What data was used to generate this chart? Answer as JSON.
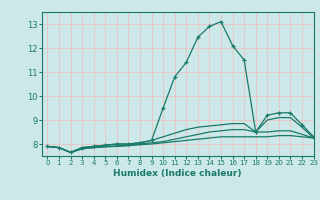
{
  "xlabel": "Humidex (Indice chaleur)",
  "ylabel": "",
  "background_color": "#cce8e8",
  "grid_color": "#e8c8c8",
  "line_color": "#1a7a6a",
  "xlim": [
    -0.5,
    23
  ],
  "ylim": [
    7.5,
    13.5
  ],
  "xticks": [
    0,
    1,
    2,
    3,
    4,
    5,
    6,
    7,
    8,
    9,
    10,
    11,
    12,
    13,
    14,
    15,
    16,
    17,
    18,
    19,
    20,
    21,
    22,
    23
  ],
  "yticks": [
    8,
    9,
    10,
    11,
    12,
    13
  ],
  "curves": [
    {
      "x": [
        0,
        1,
        2,
        3,
        4,
        5,
        6,
        7,
        8,
        9,
        10,
        11,
        12,
        13,
        14,
        15,
        16,
        17,
        18,
        19,
        20,
        21,
        22,
        23
      ],
      "y": [
        7.9,
        7.85,
        7.65,
        7.85,
        7.9,
        7.95,
        8.0,
        8.0,
        8.05,
        8.15,
        9.5,
        10.8,
        11.4,
        12.45,
        12.9,
        13.1,
        12.1,
        11.5,
        8.5,
        9.2,
        9.3,
        9.3,
        8.8,
        8.3
      ],
      "has_markers": true,
      "marker": "+"
    },
    {
      "x": [
        0,
        1,
        2,
        3,
        4,
        5,
        6,
        7,
        8,
        9,
        10,
        11,
        12,
        13,
        14,
        15,
        16,
        17,
        18,
        19,
        20,
        21,
        22,
        23
      ],
      "y": [
        7.9,
        7.85,
        7.65,
        7.85,
        7.9,
        7.95,
        8.0,
        8.0,
        8.05,
        8.15,
        8.3,
        8.45,
        8.6,
        8.7,
        8.75,
        8.8,
        8.85,
        8.85,
        8.5,
        9.0,
        9.1,
        9.1,
        8.7,
        8.25
      ],
      "has_markers": false
    },
    {
      "x": [
        0,
        1,
        2,
        3,
        4,
        5,
        6,
        7,
        8,
        9,
        10,
        11,
        12,
        13,
        14,
        15,
        16,
        17,
        18,
        19,
        20,
        21,
        22,
        23
      ],
      "y": [
        7.9,
        7.85,
        7.65,
        7.8,
        7.85,
        7.9,
        7.92,
        7.95,
        8.0,
        8.05,
        8.1,
        8.2,
        8.3,
        8.4,
        8.5,
        8.55,
        8.6,
        8.6,
        8.5,
        8.5,
        8.55,
        8.55,
        8.4,
        8.25
      ],
      "has_markers": false
    },
    {
      "x": [
        0,
        1,
        2,
        3,
        4,
        5,
        6,
        7,
        8,
        9,
        10,
        11,
        12,
        13,
        14,
        15,
        16,
        17,
        18,
        19,
        20,
        21,
        22,
        23
      ],
      "y": [
        7.9,
        7.85,
        7.65,
        7.8,
        7.85,
        7.88,
        7.9,
        7.93,
        7.97,
        8.0,
        8.05,
        8.1,
        8.15,
        8.2,
        8.25,
        8.3,
        8.3,
        8.3,
        8.3,
        8.3,
        8.35,
        8.35,
        8.3,
        8.25
      ],
      "has_markers": false
    }
  ]
}
